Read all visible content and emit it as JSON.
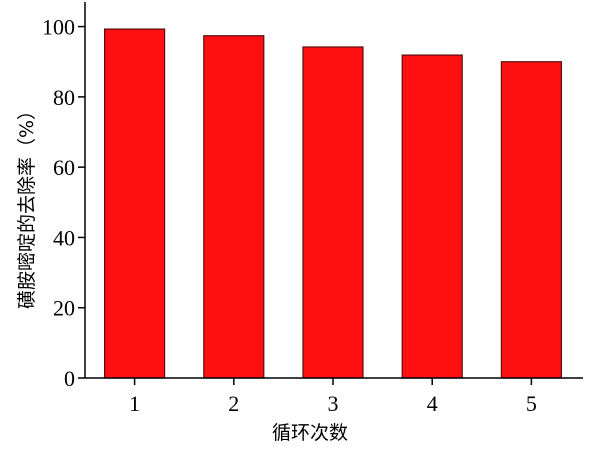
{
  "chart_data": {
    "type": "bar",
    "categories": [
      "1",
      "2",
      "3",
      "4",
      "5"
    ],
    "values": [
      99.3,
      97.4,
      94.2,
      91.9,
      90.0
    ],
    "title": "",
    "xlabel": "循环次数",
    "ylabel": "磺胺嘧啶的去除率（%）",
    "ylim": [
      0,
      107
    ],
    "xlim": [
      0.5,
      5.5
    ],
    "yticks": [
      0,
      20,
      40,
      60,
      80,
      100
    ],
    "grid": false,
    "legend": "none",
    "bar_color": "#ff1010",
    "bar_edge_color": "#5a0e0e"
  }
}
